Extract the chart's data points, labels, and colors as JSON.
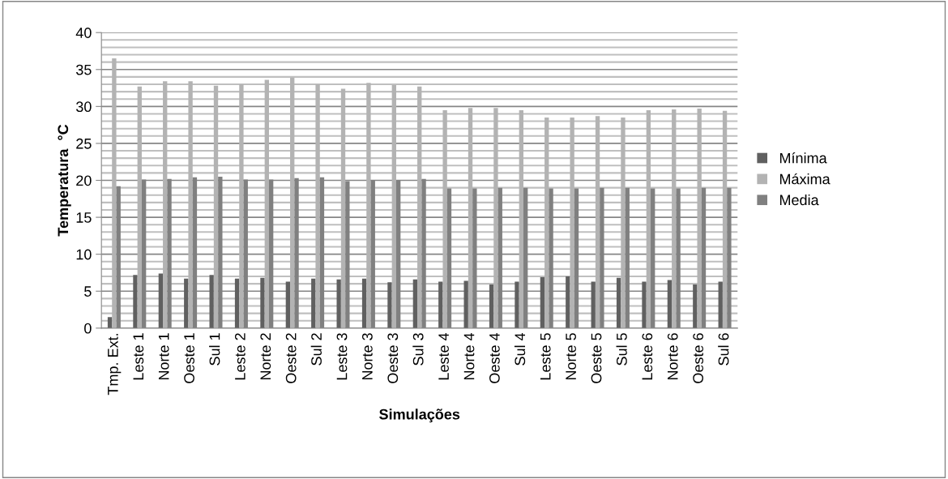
{
  "chart_data": {
    "type": "bar",
    "xlabel": "Simulações",
    "ylabel": "Temperatura  °C",
    "categories": [
      "Tmp. Ext.",
      "Leste 1",
      "Norte 1",
      "Oeste 1",
      "Sul 1",
      "Leste 2",
      "Norte 2",
      "Oeste 2",
      "Sul 2",
      "Leste 3",
      "Norte 3",
      "Oeste 3",
      "Sul 3",
      "Leste 4",
      "Norte 4",
      "Oeste 4",
      "Sul 4",
      "Leste 5",
      "Norte 5",
      "Oeste 5",
      "Sul 5",
      "Leste 6",
      "Norte 6",
      "Oeste 6",
      "Sul 6"
    ],
    "series": [
      {
        "name": "Mínima",
        "color": "#606060",
        "values": [
          1.5,
          7.2,
          7.4,
          6.7,
          7.2,
          6.7,
          6.8,
          6.3,
          6.7,
          6.6,
          6.7,
          6.2,
          6.6,
          6.3,
          6.4,
          5.9,
          6.3,
          6.9,
          7.0,
          6.3,
          6.8,
          6.3,
          6.5,
          5.9,
          6.3
        ]
      },
      {
        "name": "Máxima",
        "color": "#b3b3b3",
        "values": [
          36.5,
          32.7,
          33.4,
          33.4,
          32.8,
          33.0,
          33.6,
          33.9,
          33.0,
          32.4,
          33.2,
          32.9,
          32.7,
          29.5,
          29.8,
          29.8,
          29.5,
          28.5,
          28.5,
          28.7,
          28.5,
          29.5,
          29.6,
          29.7,
          29.4
        ]
      },
      {
        "name": "Media",
        "color": "#808080",
        "values": [
          19.2,
          20.1,
          20.2,
          20.4,
          20.5,
          20.1,
          20.1,
          20.3,
          20.4,
          19.9,
          20.0,
          20.0,
          20.2,
          18.9,
          18.9,
          19.0,
          19.0,
          18.9,
          18.9,
          19.0,
          19.0,
          18.9,
          18.9,
          19.0,
          19.0
        ]
      }
    ],
    "ylim": [
      0,
      40
    ],
    "yticks": [
      0,
      {
        "value": 1,
        "label": null
      },
      {
        "value": 2,
        "label": null
      },
      {
        "value": 3,
        "label": null
      },
      {
        "value": 4,
        "label": null
      },
      5,
      {
        "value": 6,
        "label": null
      },
      {
        "value": 7,
        "label": null
      },
      {
        "value": 8,
        "label": null
      },
      {
        "value": 9,
        "label": null
      },
      10,
      {
        "value": 11,
        "label": null
      },
      {
        "value": 12,
        "label": null
      },
      {
        "value": 13,
        "label": null
      },
      {
        "value": 14,
        "label": null
      },
      15,
      {
        "value": 16,
        "label": null
      },
      {
        "value": 17,
        "label": null
      },
      {
        "value": 18,
        "label": null
      },
      {
        "value": 19,
        "label": null
      },
      20,
      {
        "value": 21,
        "label": null
      },
      {
        "value": 22,
        "label": null
      },
      {
        "value": 23,
        "label": null
      },
      {
        "value": 24,
        "label": null
      },
      25,
      {
        "value": 26,
        "label": null
      },
      {
        "value": 27,
        "label": null
      },
      {
        "value": 28,
        "label": null
      },
      {
        "value": 29,
        "label": null
      },
      30,
      {
        "value": 31,
        "label": null
      },
      {
        "value": 32,
        "label": null
      },
      {
        "value": 33,
        "label": null
      },
      {
        "value": 34,
        "label": null
      },
      35,
      {
        "value": 36,
        "label": null
      },
      {
        "value": 37,
        "label": null
      },
      {
        "value": 38,
        "label": null
      },
      {
        "value": 39,
        "label": null
      },
      40
    ],
    "grid": "y",
    "legend": "right"
  }
}
